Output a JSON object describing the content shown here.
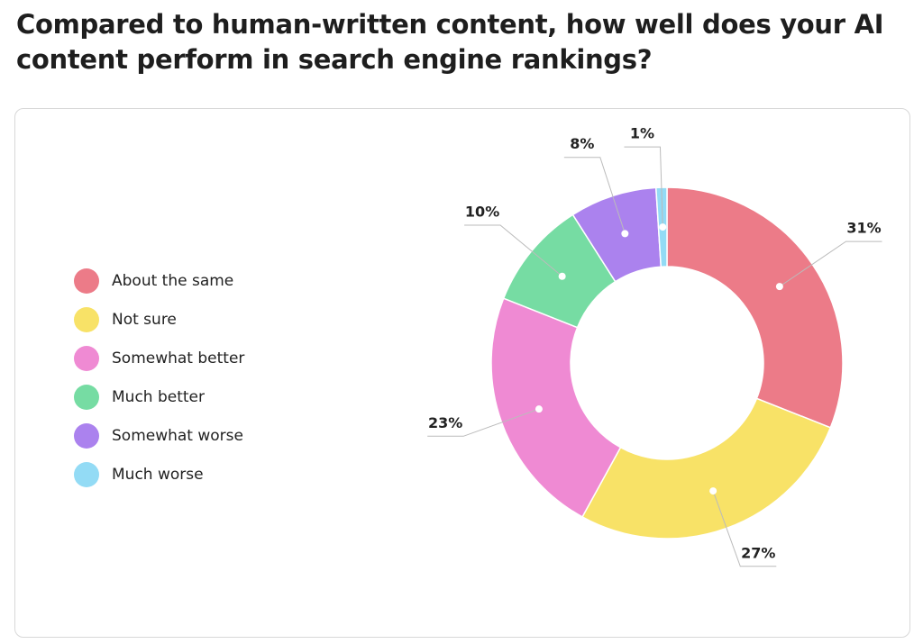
{
  "chart_data": {
    "type": "donut",
    "title": "Compared to human-written content, how well does your AI content perform in search engine rankings?",
    "categories": [
      "About the same",
      "Not sure",
      "Somewhat better",
      "Much better",
      "Somewhat worse",
      "Much worse"
    ],
    "values": [
      31,
      27,
      23,
      10,
      8,
      1
    ],
    "value_labels": [
      "31%",
      "27%",
      "23%",
      "10%",
      "8%",
      "1%"
    ],
    "colors": [
      "#ec7b88",
      "#f8e267",
      "#ef8ad3",
      "#76dca3",
      "#ab82ee",
      "#93dbf5"
    ],
    "legend": "left"
  }
}
